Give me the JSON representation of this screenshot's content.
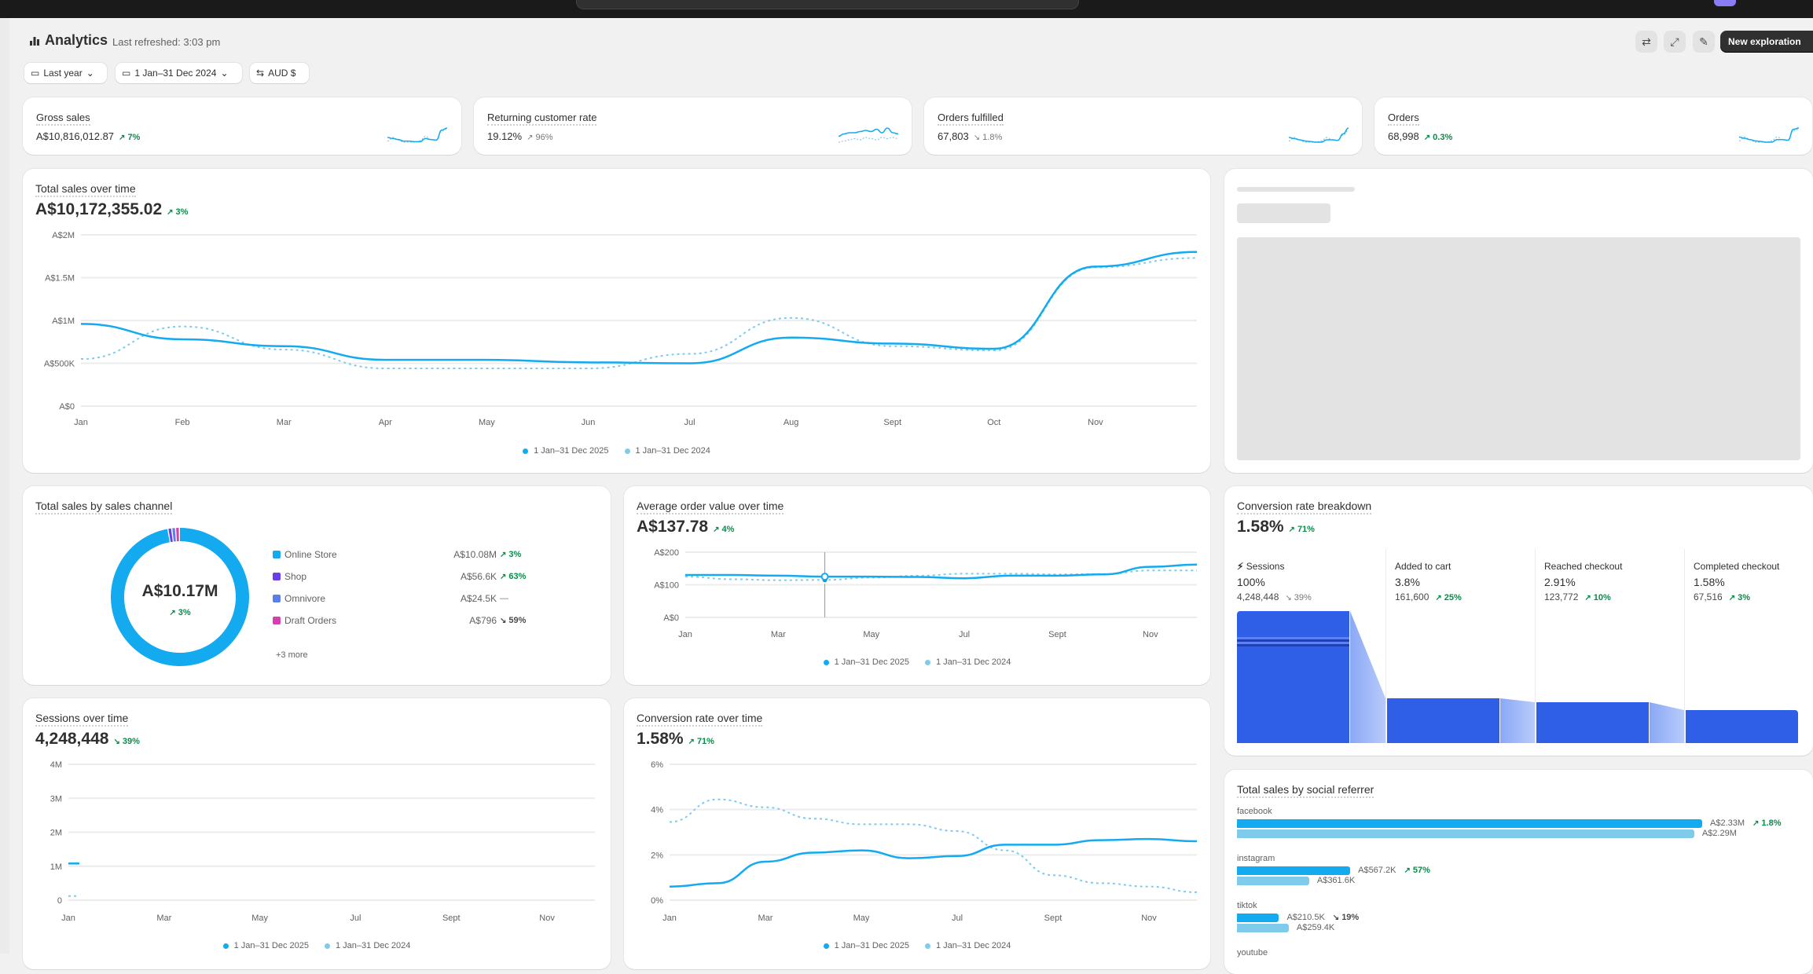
{
  "colors": {
    "current": "#13aaf0",
    "previous": "#7fcbec",
    "positive": "#0c8a4a",
    "funnel": "#2f5fe6",
    "funnel_connector": "#a9c0f8",
    "shop": "#6b3fe6",
    "omnivore": "#5b7fe8",
    "draft_orders": "#d63fae"
  },
  "header": {
    "title": "Analytics",
    "refreshed": "Last refreshed: 3:03 pm",
    "new_exploration": "New exploration",
    "icons": [
      "refresh-icon",
      "fullscreen-icon",
      "edit-icon"
    ]
  },
  "filters": [
    {
      "label": "Last year",
      "icon": "calendar-icon"
    },
    {
      "label": "1 Jan–31 Dec 2024",
      "icon": "calendar-compare-icon"
    },
    {
      "label": "AUD $",
      "icon": "currency-icon"
    }
  ],
  "kpis": [
    {
      "title": "Gross sales",
      "value": "A$10,816,012.87",
      "delta": "7%",
      "direction": "up",
      "tone": "pos",
      "spark": [
        9,
        8,
        7,
        5.5,
        5.5,
        5,
        5,
        8,
        7,
        6.5,
        16,
        18
      ],
      "spark_prev": [
        5.5,
        9,
        6.5,
        4.5,
        4.5,
        4.5,
        6,
        10,
        7,
        6.5,
        15,
        17
      ]
    },
    {
      "title": "Returning customer rate",
      "value": "19.12%",
      "delta": "96%",
      "direction": "up",
      "tone": "neu",
      "spark": [
        10,
        12,
        13,
        13,
        14,
        15,
        14,
        16,
        13,
        17,
        13,
        12
      ],
      "spark_prev": [
        5,
        6,
        7,
        8,
        7,
        9,
        8,
        7,
        9,
        8,
        9,
        8
      ]
    },
    {
      "title": "Orders fulfilled",
      "value": "67,803",
      "delta": "1.8%",
      "direction": "down",
      "tone": "neu",
      "spark": [
        9,
        8,
        7,
        6,
        5.5,
        5,
        5,
        7,
        7,
        6.5,
        12,
        17
      ],
      "spark_prev": [
        6,
        9,
        7,
        5,
        5,
        5,
        6,
        9,
        7,
        6.5,
        11,
        15
      ]
    },
    {
      "title": "Orders",
      "value": "68,998",
      "delta": "0.3%",
      "direction": "up",
      "tone": "pos",
      "spark": [
        9,
        8,
        7,
        6,
        5.5,
        5,
        5,
        7,
        7,
        6.5,
        15,
        16
      ],
      "spark_prev": [
        6,
        9,
        7,
        5,
        5,
        5,
        6,
        9,
        7,
        6.5,
        14,
        15
      ]
    }
  ],
  "legend": {
    "current": "1 Jan–31 Dec 2025",
    "previous": "1 Jan–31 Dec 2024"
  },
  "charts": {
    "total_sales": {
      "title": "Total sales over time",
      "value": "A$10,172,355.02",
      "delta": "3%",
      "direction": "up",
      "type": "line",
      "y_max": 2000000,
      "y_ticks": [
        {
          "label": "A$0",
          "value": 0
        },
        {
          "label": "A$500K",
          "value": 500000
        },
        {
          "label": "A$1M",
          "value": 1000000
        },
        {
          "label": "A$1.5M",
          "value": 1500000
        },
        {
          "label": "A$2M",
          "value": 2000000
        }
      ],
      "x_ticks": [
        {
          "label": "Jan",
          "month": 0
        },
        {
          "label": "Feb",
          "month": 1
        },
        {
          "label": "Mar",
          "month": 2
        },
        {
          "label": "Apr",
          "month": 3
        },
        {
          "label": "May",
          "month": 4
        },
        {
          "label": "Jun",
          "month": 5
        },
        {
          "label": "Jul",
          "month": 6
        },
        {
          "label": "Aug",
          "month": 7
        },
        {
          "label": "Sept",
          "month": 8
        },
        {
          "label": "Oct",
          "month": 9
        },
        {
          "label": "Nov",
          "month": 10
        }
      ],
      "series": [
        {
          "name": "1 Jan–31 Dec 2025",
          "style": "solid",
          "values": [
            960000,
            780000,
            700000,
            540000,
            540000,
            510000,
            500000,
            800000,
            730000,
            670000,
            1630000,
            1800000
          ]
        },
        {
          "name": "1 Jan–31 Dec 2024",
          "style": "dashed",
          "values": [
            550000,
            930000,
            660000,
            440000,
            440000,
            440000,
            610000,
            1030000,
            700000,
            650000,
            1620000,
            1730000
          ]
        }
      ]
    },
    "aov": {
      "title": "Average order value over time",
      "value": "A$137.78",
      "delta": "4%",
      "direction": "up",
      "type": "line",
      "y_max": 200,
      "highlighted_month": 3,
      "y_ticks": [
        {
          "label": "A$0",
          "value": 0
        },
        {
          "label": "A$100",
          "value": 100
        },
        {
          "label": "A$200",
          "value": 200
        }
      ],
      "x_ticks": [
        {
          "label": "Jan",
          "month": 0
        },
        {
          "label": "Mar",
          "month": 2
        },
        {
          "label": "May",
          "month": 4
        },
        {
          "label": "Jul",
          "month": 6
        },
        {
          "label": "Sept",
          "month": 8
        },
        {
          "label": "Nov",
          "month": 10
        }
      ],
      "series": [
        {
          "name": "1 Jan–31 Dec 2025",
          "style": "solid",
          "values": [
            130,
            130,
            128,
            125,
            125,
            124,
            120,
            128,
            128,
            132,
            155,
            162
          ]
        },
        {
          "name": "1 Jan–31 Dec 2024",
          "style": "dashed",
          "values": [
            125,
            117,
            114,
            115,
            122,
            128,
            134,
            134,
            132,
            133,
            144,
            144
          ]
        }
      ]
    },
    "sessions": {
      "title": "Sessions over time",
      "value": "4,248,448",
      "delta": "39%",
      "direction": "down",
      "type": "line",
      "y_max": 4000000,
      "y_ticks": [
        {
          "label": "0",
          "value": 0
        },
        {
          "label": "1M",
          "value": 1000000
        },
        {
          "label": "2M",
          "value": 2000000
        },
        {
          "label": "3M",
          "value": 3000000
        },
        {
          "label": "4M",
          "value": 4000000
        }
      ],
      "x_ticks": [
        {
          "label": "Jan",
          "month": 0
        },
        {
          "label": "Mar",
          "month": 2
        },
        {
          "label": "May",
          "month": 4
        },
        {
          "label": "Jul",
          "month": 6
        },
        {
          "label": "Sept",
          "month": 8
        },
        {
          "label": "Nov",
          "month": 10
        }
      ],
      "series": [
        {
          "name": "1 Jan–31 Dec 2025",
          "style": "solid",
          "values": [
            1080000,
            null,
            null,
            null,
            null,
            null,
            null,
            null,
            null,
            null,
            null,
            null
          ]
        },
        {
          "name": "1 Jan–31 Dec 2024",
          "style": "dashed",
          "values": [
            120000,
            null,
            null,
            null,
            null,
            null,
            null,
            null,
            null,
            null,
            null,
            null
          ]
        }
      ]
    },
    "conversion": {
      "title": "Conversion rate over time",
      "value": "1.58%",
      "delta": "71%",
      "direction": "up",
      "type": "line",
      "y_max": 6,
      "y_ticks": [
        {
          "label": "0%",
          "value": 0
        },
        {
          "label": "2%",
          "value": 2
        },
        {
          "label": "4%",
          "value": 4
        },
        {
          "label": "6%",
          "value": 6
        }
      ],
      "x_ticks": [
        {
          "label": "Jan",
          "month": 0
        },
        {
          "label": "Mar",
          "month": 2
        },
        {
          "label": "May",
          "month": 4
        },
        {
          "label": "Jul",
          "month": 6
        },
        {
          "label": "Sept",
          "month": 8
        },
        {
          "label": "Nov",
          "month": 10
        }
      ],
      "series": [
        {
          "name": "1 Jan–31 Dec 2025",
          "style": "solid",
          "values": [
            0.6,
            0.75,
            1.7,
            2.1,
            2.2,
            1.85,
            1.95,
            2.45,
            2.45,
            2.65,
            2.7,
            2.6
          ]
        },
        {
          "name": "1 Jan–31 Dec 2024",
          "style": "dashed",
          "values": [
            3.45,
            4.45,
            4.1,
            3.6,
            3.35,
            3.35,
            3.05,
            2.2,
            1.1,
            0.75,
            0.6,
            0.35
          ]
        }
      ]
    }
  },
  "sales_channel": {
    "title": "Total sales by sales channel",
    "total": "A$10.17M",
    "delta": "3%",
    "direction": "up",
    "items": [
      {
        "name": "Online Store",
        "value": "A$10.08M",
        "amount": 10080000,
        "delta": "3%",
        "direction": "up",
        "tone": "pos",
        "color": "#13aaf0"
      },
      {
        "name": "Shop",
        "value": "A$56.6K",
        "amount": 56600,
        "delta": "63%",
        "direction": "up",
        "tone": "pos",
        "color": "#6b3fe6"
      },
      {
        "name": "Omnivore",
        "value": "A$24.5K",
        "amount": 24500,
        "delta": "—",
        "direction": "none",
        "tone": "neu",
        "color": "#5b7fe8"
      },
      {
        "name": "Draft Orders",
        "value": "A$796",
        "amount": 796,
        "delta": "59%",
        "direction": "down",
        "tone": "neg",
        "color": "#d63fae"
      }
    ],
    "more": "+3 more"
  },
  "funnel": {
    "title": "Conversion rate breakdown",
    "value": "1.58%",
    "delta": "71%",
    "direction": "up",
    "steps": [
      {
        "label": "Sessions",
        "pct": "100%",
        "count": "4,248,448",
        "delta": "39%",
        "direction": "down",
        "tone": "neu"
      },
      {
        "label": "Added to cart",
        "pct": "3.8%",
        "count": "161,600",
        "delta": "25%",
        "direction": "up",
        "tone": "pos"
      },
      {
        "label": "Reached checkout",
        "pct": "2.91%",
        "count": "123,772",
        "delta": "10%",
        "direction": "up",
        "tone": "pos"
      },
      {
        "label": "Completed checkout",
        "pct": "1.58%",
        "count": "67,516",
        "delta": "3%",
        "direction": "up",
        "tone": "pos"
      }
    ]
  },
  "social": {
    "title": "Total sales by social referrer",
    "items": [
      {
        "name": "facebook",
        "current": "A$2.33M",
        "current_amount": 2330000,
        "previous": "A$2.29M",
        "previous_amount": 2290000,
        "delta": "1.8%",
        "direction": "up",
        "tone": "pos"
      },
      {
        "name": "instagram",
        "current": "A$567.2K",
        "current_amount": 567200,
        "previous": "A$361.6K",
        "previous_amount": 361600,
        "delta": "57%",
        "direction": "up",
        "tone": "pos"
      },
      {
        "name": "tiktok",
        "current": "A$210.5K",
        "current_amount": 210500,
        "previous": "A$259.4K",
        "previous_amount": 259400,
        "delta": "19%",
        "direction": "down",
        "tone": "neg"
      },
      {
        "name": "youtube"
      }
    ]
  }
}
